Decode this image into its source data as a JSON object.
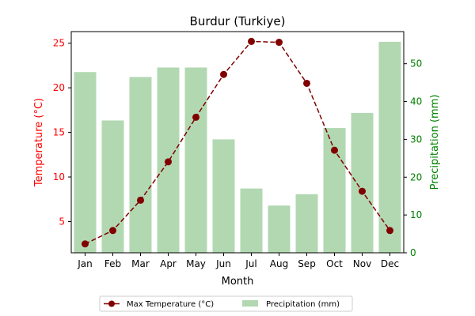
{
  "chart_data": {
    "type": "bar+line",
    "title": "Burdur (Turkiye)",
    "xlabel": "Month",
    "categories": [
      "Jan",
      "Feb",
      "Mar",
      "Apr",
      "May",
      "Jun",
      "Jul",
      "Aug",
      "Sep",
      "Oct",
      "Nov",
      "Dec"
    ],
    "left_axis": {
      "label": "Temperature (°C)",
      "ylim": [
        1.5,
        26.3
      ],
      "ticks": [
        5,
        10,
        15,
        20,
        25
      ],
      "color": "#ff0000"
    },
    "right_axis": {
      "label": "Precipitation (mm)",
      "ylim": [
        0,
        58.5
      ],
      "ticks": [
        0,
        10,
        20,
        30,
        40,
        50
      ],
      "color": "#008000"
    },
    "series": [
      {
        "name": "Max Temperature (°C)",
        "kind": "line",
        "axis": "left",
        "color": "#800000",
        "style": "dashed-with-circle-markers",
        "values": [
          2.5,
          4.0,
          7.4,
          11.7,
          16.7,
          21.5,
          25.2,
          25.1,
          20.5,
          13.0,
          8.4,
          4.0
        ]
      },
      {
        "name": "Precipitation (mm)",
        "kind": "bar",
        "axis": "right",
        "color": "#b2d8b2",
        "values": [
          47.8,
          35.0,
          46.5,
          49.0,
          49.0,
          30.0,
          17.0,
          12.5,
          15.5,
          33.0,
          37.0,
          55.8
        ]
      }
    ],
    "legend_position": "bottom-center",
    "grid": false
  }
}
